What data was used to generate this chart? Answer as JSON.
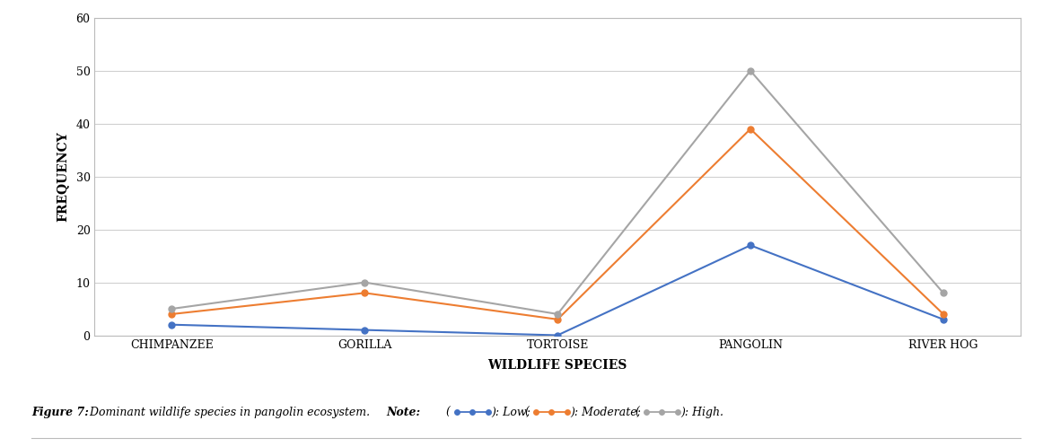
{
  "categories": [
    "CHIMPANZEE",
    "GORILLA",
    "TORTOISE",
    "PANGOLIN",
    "RIVER HOG"
  ],
  "low": [
    2,
    1,
    0,
    17,
    3
  ],
  "moderate": [
    4,
    8,
    3,
    39,
    4
  ],
  "high": [
    5,
    10,
    4,
    50,
    8
  ],
  "low_color": "#4472C4",
  "moderate_color": "#ED7D31",
  "high_color": "#A5A5A5",
  "xlabel": "WILDLIFE SPECIES",
  "ylabel": "FREQUENCY",
  "ylim": [
    0,
    60
  ],
  "yticks": [
    0,
    10,
    20,
    30,
    40,
    50,
    60
  ],
  "marker": "o",
  "linewidth": 1.5,
  "markersize": 5,
  "background_color": "#ffffff",
  "grid_color": "#d0d0d0",
  "caption_prefix": "Figure 7: ",
  "caption_body": " Dominant wildlife species in pangolin ecosystem. ",
  "caption_note": "Note:",
  "caption_low": ": Low; ",
  "caption_moderate": ": Moderate; ",
  "caption_high": ": High.",
  "spine_color": "#bbbbbb"
}
